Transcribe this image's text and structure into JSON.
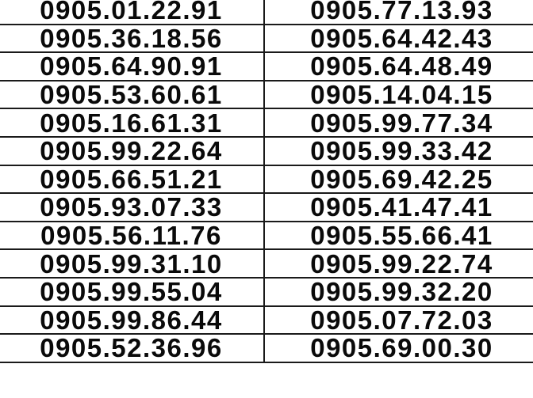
{
  "rows": [
    [
      "0905.01.22.91",
      "0905.77.13.93"
    ],
    [
      "0905.36.18.56",
      "0905.64.42.43"
    ],
    [
      "0905.64.90.91",
      "0905.64.48.49"
    ],
    [
      "0905.53.60.61",
      "0905.14.04.15"
    ],
    [
      "0905.16.61.31",
      "0905.99.77.34"
    ],
    [
      "0905.99.22.64",
      "0905.99.33.42"
    ],
    [
      "0905.66.51.21",
      "0905.69.42.25"
    ],
    [
      "0905.93.07.33",
      "0905.41.47.41"
    ],
    [
      "0905.56.11.76",
      "0905.55.66.41"
    ],
    [
      "0905.99.31.10",
      "0905.99.22.74"
    ],
    [
      "0905.99.55.04",
      "0905.99.32.20"
    ],
    [
      "0905.99.86.44",
      "0905.07.72.03"
    ],
    [
      "0905.52.36.96",
      "0905.69.00.30"
    ]
  ]
}
